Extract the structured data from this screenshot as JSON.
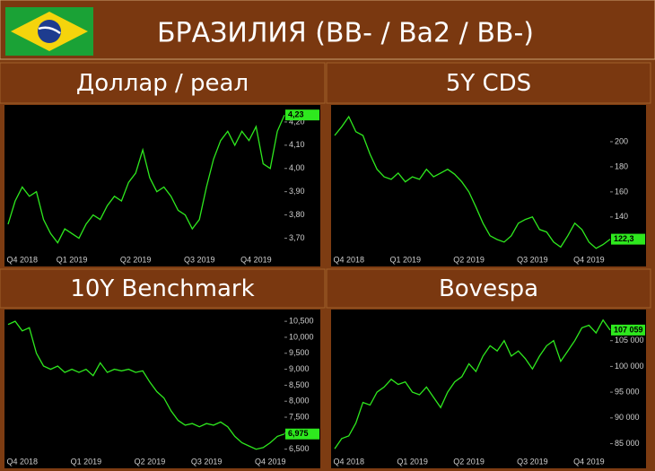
{
  "title": "БРАЗИЛИЯ (BB- / Ba2 / BB-)",
  "chart_data": [
    {
      "type": "line",
      "title": "Доллар / реал",
      "color": "#2ee81e",
      "categories": [
        null,
        null,
        "Q4 2018",
        null,
        null,
        null,
        null,
        null,
        null,
        "Q1 2019",
        null,
        null,
        null,
        null,
        null,
        null,
        null,
        null,
        "Q2 2019",
        null,
        null,
        null,
        null,
        null,
        null,
        null,
        null,
        "Q3 2019",
        null,
        null,
        null,
        null,
        null,
        null,
        null,
        "Q4 2019",
        null,
        null,
        null,
        null
      ],
      "values": [
        3.76,
        3.86,
        3.92,
        3.88,
        3.9,
        3.78,
        3.72,
        3.68,
        3.74,
        3.72,
        3.7,
        3.76,
        3.8,
        3.78,
        3.84,
        3.88,
        3.86,
        3.94,
        3.98,
        4.08,
        3.96,
        3.9,
        3.92,
        3.88,
        3.82,
        3.8,
        3.74,
        3.78,
        3.92,
        4.04,
        4.12,
        4.16,
        4.1,
        4.16,
        4.12,
        4.18,
        4.02,
        4.0,
        4.16,
        4.23
      ],
      "value_labels": [
        null,
        null,
        null,
        null,
        null,
        null,
        null,
        null,
        null,
        null,
        null,
        null,
        null,
        null,
        null,
        null,
        null,
        null,
        null,
        null,
        null,
        null,
        null,
        null,
        null,
        null,
        null,
        null,
        null,
        null,
        null,
        null,
        null,
        null,
        null,
        null,
        null,
        null,
        null,
        "4,23"
      ],
      "ylim": [
        3.64,
        4.25
      ],
      "yticks": [
        {
          "value": 3.7,
          "label": "3,70"
        },
        {
          "value": 3.8,
          "label": "3,80"
        },
        {
          "value": 3.9,
          "label": "3,90"
        },
        {
          "value": 4.0,
          "label": "4,00"
        },
        {
          "value": 4.1,
          "label": "4,10"
        },
        {
          "value": 4.2,
          "label": "4,20"
        }
      ]
    },
    {
      "type": "line",
      "title": "5Y CDS",
      "color": "#2ee81e",
      "categories": [
        null,
        null,
        "Q4 2018",
        null,
        null,
        null,
        null,
        null,
        null,
        null,
        "Q1 2019",
        null,
        null,
        null,
        null,
        null,
        null,
        null,
        null,
        "Q2 2019",
        null,
        null,
        null,
        null,
        null,
        null,
        null,
        null,
        "Q3 2019",
        null,
        null,
        null,
        null,
        null,
        null,
        null,
        "Q4 2019",
        null,
        null,
        null
      ],
      "values": [
        205,
        212,
        220,
        208,
        205,
        190,
        178,
        172,
        170,
        175,
        168,
        172,
        170,
        178,
        172,
        175,
        178,
        174,
        168,
        160,
        148,
        135,
        125,
        122,
        120,
        125,
        135,
        138,
        140,
        130,
        128,
        120,
        116,
        125,
        135,
        130,
        120,
        115,
        118,
        122.3
      ],
      "value_labels": [
        null,
        null,
        null,
        null,
        null,
        null,
        null,
        null,
        null,
        null,
        null,
        null,
        null,
        null,
        null,
        null,
        null,
        null,
        null,
        null,
        null,
        null,
        null,
        null,
        null,
        null,
        null,
        null,
        null,
        null,
        null,
        null,
        null,
        null,
        null,
        null,
        null,
        null,
        null,
        "122,3"
      ],
      "ylim": [
        112,
        225
      ],
      "yticks": [
        140,
        160,
        180,
        200
      ]
    },
    {
      "type": "line",
      "title": "10Y Benchmark",
      "color": "#2ee81e",
      "categories": [
        null,
        null,
        "Q4 2018",
        null,
        null,
        null,
        null,
        null,
        null,
        null,
        null,
        "Q1 2019",
        null,
        null,
        null,
        null,
        null,
        null,
        null,
        null,
        "Q2 2019",
        null,
        null,
        null,
        null,
        null,
        null,
        null,
        "Q3 2019",
        null,
        null,
        null,
        null,
        null,
        null,
        null,
        null,
        "Q4 2019",
        null,
        null
      ],
      "values": [
        10400,
        10500,
        10200,
        10300,
        9500,
        9100,
        9000,
        9100,
        8900,
        9000,
        8900,
        9000,
        8800,
        9200,
        8900,
        9000,
        8950,
        9000,
        8900,
        8950,
        8600,
        8300,
        8100,
        7700,
        7400,
        7250,
        7300,
        7200,
        7300,
        7250,
        7350,
        7200,
        6900,
        6700,
        6600,
        6500,
        6550,
        6700,
        6900,
        6975
      ],
      "value_labels": [
        null,
        null,
        null,
        null,
        null,
        null,
        null,
        null,
        null,
        null,
        null,
        null,
        null,
        null,
        null,
        null,
        null,
        null,
        null,
        null,
        null,
        null,
        null,
        null,
        null,
        null,
        null,
        null,
        null,
        null,
        null,
        null,
        null,
        null,
        null,
        null,
        null,
        null,
        null,
        "6,975"
      ],
      "ylim": [
        6350,
        10700
      ],
      "yticks": [
        {
          "value": 6500,
          "label": "6,500"
        },
        {
          "value": 7000,
          "label": "7,000"
        },
        {
          "value": 7500,
          "label": "7,500"
        },
        {
          "value": 8000,
          "label": "8,000"
        },
        {
          "value": 8500,
          "label": "8,500"
        },
        {
          "value": 9000,
          "label": "9,000"
        },
        {
          "value": 9500,
          "label": "9,500"
        },
        {
          "value": 10000,
          "label": "10,000"
        },
        {
          "value": 10500,
          "label": "10,500"
        }
      ]
    },
    {
      "type": "line",
      "title": "Bovespa",
      "color": "#2ee81e",
      "categories": [
        null,
        null,
        "Q4 2018",
        null,
        null,
        null,
        null,
        null,
        null,
        null,
        null,
        "Q1 2019",
        null,
        null,
        null,
        null,
        null,
        null,
        null,
        "Q2 2019",
        null,
        null,
        null,
        null,
        null,
        null,
        null,
        null,
        "Q3 2019",
        null,
        null,
        null,
        null,
        null,
        null,
        null,
        "Q4 2019",
        null,
        null,
        null
      ],
      "values": [
        84000,
        86000,
        86500,
        89000,
        93000,
        92500,
        95000,
        96000,
        97500,
        96500,
        97000,
        95000,
        94500,
        96000,
        94000,
        92000,
        95000,
        97000,
        98000,
        100500,
        99000,
        102000,
        104000,
        103000,
        105000,
        102000,
        103000,
        101500,
        99500,
        102000,
        104000,
        105000,
        101000,
        103000,
        105000,
        107500,
        108000,
        106500,
        109000,
        107059
      ],
      "value_labels": [
        null,
        null,
        null,
        null,
        null,
        null,
        null,
        null,
        null,
        null,
        null,
        null,
        null,
        null,
        null,
        null,
        null,
        null,
        null,
        null,
        null,
        null,
        null,
        null,
        null,
        null,
        null,
        null,
        null,
        null,
        null,
        null,
        null,
        null,
        null,
        null,
        null,
        null,
        null,
        "107 059"
      ],
      "ylim": [
        83000,
        110000
      ],
      "yticks": [
        {
          "value": 85000,
          "label": "85 000"
        },
        {
          "value": 90000,
          "label": "90 000"
        },
        {
          "value": 95000,
          "label": "95 000"
        },
        {
          "value": 100000,
          "label": "100 000"
        },
        {
          "value": 105000,
          "label": "105 000"
        }
      ]
    }
  ]
}
